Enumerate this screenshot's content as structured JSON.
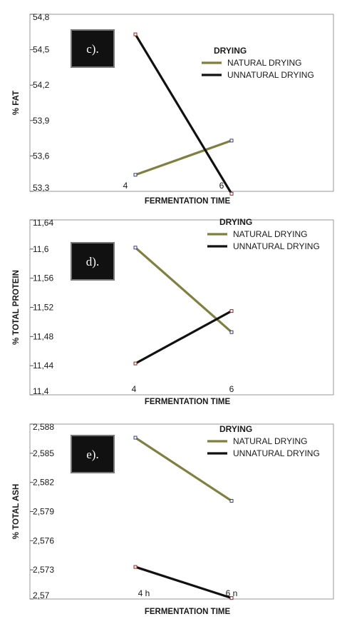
{
  "chart_data": [
    {
      "type": "line",
      "panel_label": "c).",
      "xlabel": "FERMENTATION TIME",
      "ylabel": "% FAT",
      "ylim": [
        53.3,
        54.8
      ],
      "yticks": [
        "53,3",
        "53,6",
        "53,9",
        "54,2",
        "54,5",
        "54,8"
      ],
      "x_tick_labels": [
        "4",
        "6"
      ],
      "legend_title": "DRYING",
      "legend_position": "top-right",
      "grid": false,
      "series": [
        {
          "name": "NATURAL DRYING",
          "color": "#7f7f3f",
          "values": [
            53.44,
            53.73
          ]
        },
        {
          "name": "UNNATURAL DRYING",
          "color": "#111111",
          "values": [
            54.63,
            53.28
          ]
        }
      ]
    },
    {
      "type": "line",
      "panel_label": "d).",
      "xlabel": "FERMENTATION TIME",
      "ylabel": "% TOTAL PROTEIN",
      "ylim": [
        11.4,
        11.64
      ],
      "yticks": [
        "11,4",
        "11,44",
        "11,48",
        "11,52",
        "11,56",
        "11,6",
        "11,64"
      ],
      "x_tick_labels": [
        "4",
        "6"
      ],
      "legend_title": "DRYING",
      "legend_position": "top-right",
      "grid": false,
      "series": [
        {
          "name": "NATURAL DRYING",
          "color": "#7f7f3f",
          "values": [
            11.602,
            11.486
          ]
        },
        {
          "name": "UNNATURAL DRYING",
          "color": "#111111",
          "values": [
            11.443,
            11.515
          ]
        }
      ]
    },
    {
      "type": "line",
      "panel_label": "e).",
      "xlabel": "FERMENTATION TIME",
      "ylabel": "% TOTAL ASH",
      "ylim": [
        2.57,
        2.588
      ],
      "yticks": [
        "2,57",
        "2,573",
        "2,576",
        "2,579",
        "2,582",
        "2,585",
        "2,588"
      ],
      "x_tick_labels": [
        "4 h",
        "6 n"
      ],
      "legend_title": "DRYING",
      "legend_position": "top-right",
      "grid": false,
      "series": [
        {
          "name": "NATURAL DRYING",
          "color": "#7f7f3f",
          "values": [
            2.5866,
            2.5801
          ]
        },
        {
          "name": "UNNATURAL DRYING",
          "color": "#111111",
          "values": [
            2.5733,
            2.5701
          ]
        }
      ]
    }
  ]
}
